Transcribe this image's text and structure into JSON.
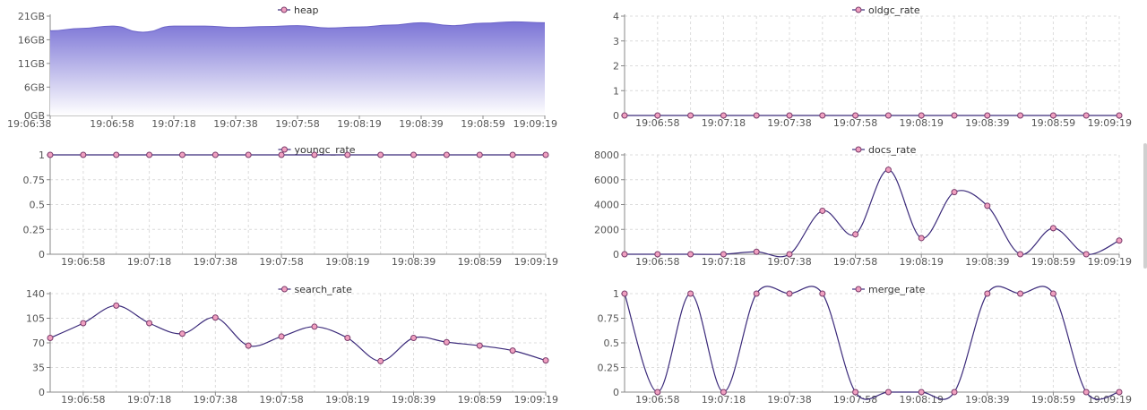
{
  "chart_data": [
    {
      "id": "heap",
      "type": "area",
      "title": "heap",
      "x": [
        "19:06:38",
        "19:06:48",
        "19:06:58",
        "19:07:08",
        "19:07:18",
        "19:07:28",
        "19:07:38",
        "19:07:48",
        "19:07:58",
        "19:08:08",
        "19:08:19",
        "19:08:29",
        "19:08:39",
        "19:08:49",
        "19:08:59",
        "19:09:09",
        "19:09:19"
      ],
      "xticks": [
        "19:06:38",
        "19:06:58",
        "19:07:18",
        "19:07:38",
        "19:07:58",
        "19:08:19",
        "19:08:39",
        "19:08:59",
        "19:09:19"
      ],
      "series": [
        {
          "name": "heap",
          "values": [
            17.9,
            18.4,
            18.9,
            17.6,
            18.9,
            18.9,
            18.6,
            18.8,
            19.0,
            18.5,
            18.7,
            19.1,
            19.6,
            19.0,
            19.5,
            19.8,
            19.6
          ]
        }
      ],
      "ylim": [
        0,
        21
      ],
      "yticks": [
        0,
        6,
        11,
        16,
        21
      ],
      "ytick_labels": [
        "0GB",
        "6GB",
        "11GB",
        "16GB",
        "21GB"
      ],
      "legend": "top-center",
      "color": "#7b74d6",
      "grid": false
    },
    {
      "id": "oldgc_rate",
      "type": "line",
      "title": "oldgc_rate",
      "x": [
        "19:06:48",
        "19:06:58",
        "19:07:08",
        "19:07:18",
        "19:07:28",
        "19:07:38",
        "19:07:48",
        "19:07:58",
        "19:08:08",
        "19:08:19",
        "19:08:29",
        "19:08:39",
        "19:08:49",
        "19:08:59",
        "19:09:09",
        "19:09:19"
      ],
      "xticks": [
        "19:06:58",
        "19:07:18",
        "19:07:38",
        "19:07:58",
        "19:08:19",
        "19:08:39",
        "19:08:59",
        "19:09:19"
      ],
      "series": [
        {
          "name": "oldgc_rate",
          "values": [
            0,
            0,
            0,
            0,
            0,
            0,
            0,
            0,
            0,
            0,
            0,
            0,
            0,
            0,
            0,
            0
          ]
        }
      ],
      "ylim": [
        0,
        4
      ],
      "yticks": [
        0,
        1,
        2,
        3,
        4
      ],
      "ytick_labels": [
        "0",
        "1",
        "2",
        "3",
        "4"
      ],
      "legend": "top-center",
      "grid": true
    },
    {
      "id": "youngc_rate",
      "type": "line",
      "title": "youngc_rate",
      "x": [
        "19:06:48",
        "19:06:58",
        "19:07:08",
        "19:07:18",
        "19:07:28",
        "19:07:38",
        "19:07:48",
        "19:07:58",
        "19:08:08",
        "19:08:19",
        "19:08:29",
        "19:08:39",
        "19:08:49",
        "19:08:59",
        "19:09:09",
        "19:09:19"
      ],
      "xticks": [
        "19:06:58",
        "19:07:18",
        "19:07:38",
        "19:07:58",
        "19:08:19",
        "19:08:39",
        "19:08:59",
        "19:09:19"
      ],
      "series": [
        {
          "name": "youngc_rate",
          "values": [
            1,
            1,
            1,
            1,
            1,
            1,
            1,
            1,
            1,
            1,
            1,
            1,
            1,
            1,
            1,
            1
          ]
        }
      ],
      "ylim": [
        0,
        1
      ],
      "yticks": [
        0,
        0.25,
        0.5,
        0.75,
        1
      ],
      "ytick_labels": [
        "0",
        "0.25",
        "0.5",
        "0.75",
        "1"
      ],
      "legend": "top-center",
      "grid": true
    },
    {
      "id": "docs_rate",
      "type": "line",
      "title": "docs_rate",
      "x": [
        "19:06:48",
        "19:06:58",
        "19:07:08",
        "19:07:18",
        "19:07:28",
        "19:07:38",
        "19:07:48",
        "19:07:58",
        "19:08:08",
        "19:08:19",
        "19:08:29",
        "19:08:39",
        "19:08:49",
        "19:08:59",
        "19:09:09",
        "19:09:19"
      ],
      "xticks": [
        "19:06:58",
        "19:07:18",
        "19:07:38",
        "19:07:58",
        "19:08:19",
        "19:08:39",
        "19:08:59",
        "19:09:19"
      ],
      "series": [
        {
          "name": "docs_rate",
          "values": [
            0,
            0,
            0,
            0,
            200,
            0,
            3500,
            1600,
            6800,
            1300,
            5000,
            3900,
            0,
            2100,
            0,
            1100
          ]
        }
      ],
      "ylim": [
        0,
        8000
      ],
      "yticks": [
        0,
        2000,
        4000,
        6000,
        8000
      ],
      "ytick_labels": [
        "0",
        "2000",
        "4000",
        "6000",
        "8000"
      ],
      "legend": "top-center",
      "grid": true
    },
    {
      "id": "search_rate",
      "type": "line",
      "title": "search_rate",
      "x": [
        "19:06:48",
        "19:06:58",
        "19:07:08",
        "19:07:18",
        "19:07:28",
        "19:07:38",
        "19:07:48",
        "19:07:58",
        "19:08:08",
        "19:08:19",
        "19:08:29",
        "19:08:39",
        "19:08:49",
        "19:08:59",
        "19:09:09",
        "19:09:19"
      ],
      "xticks": [
        "19:06:58",
        "19:07:18",
        "19:07:38",
        "19:07:58",
        "19:08:19",
        "19:08:39",
        "19:08:59",
        "19:09:19"
      ],
      "series": [
        {
          "name": "search_rate",
          "values": [
            77,
            98,
            123,
            98,
            83,
            106,
            66,
            79,
            93,
            77,
            44,
            77,
            71,
            66,
            59,
            45
          ]
        }
      ],
      "ylim": [
        0,
        140
      ],
      "yticks": [
        0,
        35,
        70,
        105,
        140
      ],
      "ytick_labels": [
        "0",
        "35",
        "70",
        "105",
        "140"
      ],
      "legend": "top-center",
      "grid": true
    },
    {
      "id": "merge_rate",
      "type": "line",
      "title": "merge_rate",
      "x": [
        "19:06:48",
        "19:06:58",
        "19:07:08",
        "19:07:18",
        "19:07:28",
        "19:07:38",
        "19:07:48",
        "19:07:58",
        "19:08:08",
        "19:08:19",
        "19:08:29",
        "19:08:39",
        "19:08:49",
        "19:08:59",
        "19:09:09",
        "19:09:19"
      ],
      "xticks": [
        "19:06:58",
        "19:07:18",
        "19:07:38",
        "19:07:58",
        "19:08:19",
        "19:08:39",
        "19:08:59",
        "19:09:19"
      ],
      "series": [
        {
          "name": "merge_rate",
          "values": [
            1,
            0,
            1,
            0,
            1,
            1,
            1,
            0,
            0,
            0,
            0,
            1,
            1,
            1,
            0,
            0
          ]
        }
      ],
      "ylim": [
        0,
        1
      ],
      "yticks": [
        0,
        0.25,
        0.5,
        0.75,
        1
      ],
      "ytick_labels": [
        "0",
        "0.25",
        "0.5",
        "0.75",
        "1"
      ],
      "legend": "top-center",
      "grid": true
    }
  ],
  "colors": {
    "line": "#3b2a7a",
    "marker_fill": "#f0a0c0",
    "marker_stroke": "#7a3a6a",
    "area_top": "#7b74d6",
    "area_bottom": "#ffffff"
  }
}
